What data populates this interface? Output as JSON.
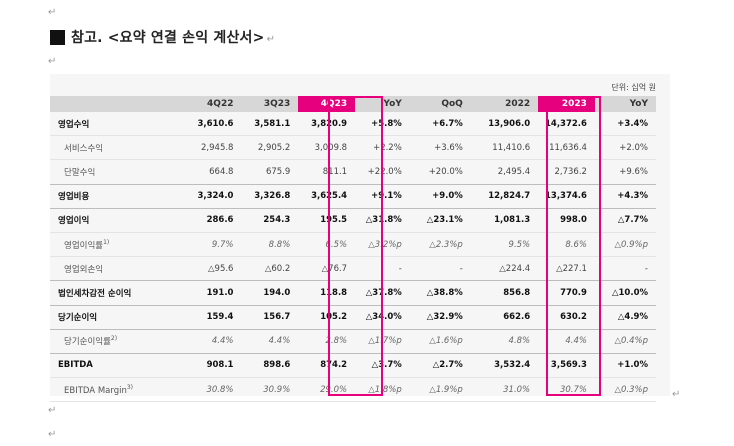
{
  "heading": {
    "text": "참고. <요약 연결 손익 계산서>"
  },
  "paragraph_mark": "↵",
  "unit": "단위: 십억 원",
  "columns": [
    "",
    "4Q22",
    "3Q23",
    "4Q23",
    "YoY",
    "QoQ",
    "2022",
    "2023",
    "YoY"
  ],
  "rows": [
    {
      "label": "영업수익",
      "values": [
        "3,610.6",
        "3,581.1",
        "3,820.9",
        "+5.8%",
        "+6.7%",
        "13,906.0",
        "14,372.6",
        "+3.4%"
      ]
    },
    {
      "label": "서비스수익",
      "values": [
        "2,945.8",
        "2,905.2",
        "3,009.8",
        "+2.2%",
        "+3.6%",
        "11,410.6",
        "11,636.4",
        "+2.0%"
      ]
    },
    {
      "label": "단말수익",
      "values": [
        "664.8",
        "675.9",
        "811.1",
        "+22.0%",
        "+20.0%",
        "2,495.4",
        "2,736.2",
        "+9.6%"
      ]
    },
    {
      "label": "영업비용",
      "values": [
        "3,324.0",
        "3,326.8",
        "3,625.4",
        "+9.1%",
        "+9.0%",
        "12,824.7",
        "13,374.6",
        "+4.3%"
      ]
    },
    {
      "label": "영업이익",
      "values": [
        "286.6",
        "254.3",
        "195.5",
        "△31.8%",
        "△23.1%",
        "1,081.3",
        "998.0",
        "△7.7%"
      ]
    },
    {
      "label": "영업이익률",
      "sup": "1)",
      "values": [
        "9.7%",
        "8.8%",
        "6.5%",
        "△3.2%p",
        "△2.3%p",
        "9.5%",
        "8.6%",
        "△0.9%p"
      ]
    },
    {
      "label": "영업외손익",
      "values": [
        "△95.6",
        "△60.2",
        "△76.7",
        "-",
        "-",
        "△224.4",
        "△227.1",
        "-"
      ]
    },
    {
      "label": "법인세차감전 순이익",
      "values": [
        "191.0",
        "194.0",
        "118.8",
        "△37.8%",
        "△38.8%",
        "856.8",
        "770.9",
        "△10.0%"
      ]
    },
    {
      "label": "당기순이익",
      "values": [
        "159.4",
        "156.7",
        "105.2",
        "△34.0%",
        "△32.9%",
        "662.6",
        "630.2",
        "△4.9%"
      ]
    },
    {
      "label": "당기순이익률",
      "sup": "2)",
      "values": [
        "4.4%",
        "4.4%",
        "2.8%",
        "△1.7%p",
        "△1.6%p",
        "4.8%",
        "4.4%",
        "△0.4%p"
      ]
    },
    {
      "label": "EBITDA",
      "values": [
        "908.1",
        "898.6",
        "874.2",
        "△3.7%",
        "△2.7%",
        "3,532.4",
        "3,569.3",
        "+1.0%"
      ]
    },
    {
      "label": "EBITDA Margin",
      "sup": "3)",
      "values": [
        "30.8%",
        "30.9%",
        "29.0%",
        "△1.8%p",
        "△1.9%p",
        "31.0%",
        "30.7%",
        "△0.3%p"
      ]
    }
  ],
  "colors": {
    "highlight": "#e6007e",
    "header_bg": "#d7d7d7"
  }
}
